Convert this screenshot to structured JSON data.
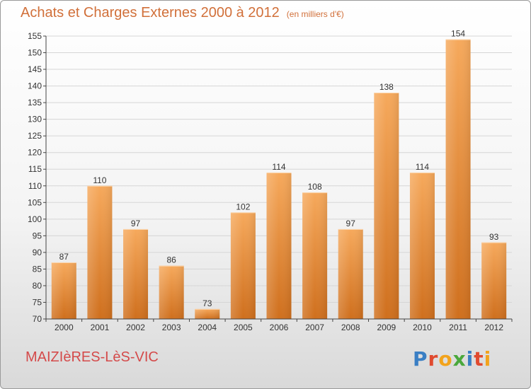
{
  "header": {
    "title": "Achats et Charges Externes 2000 à 2012",
    "unit": "(en milliers d'€)"
  },
  "footer": {
    "commune": "MAIZIèRES-LèS-VIC",
    "logo_text": "Proxiti",
    "logo_colors": [
      "#3a7fc4",
      "#e04a2f",
      "#f2a31c",
      "#4aa83c",
      "#3a7fc4",
      "#e04a2f",
      "#f2a31c"
    ]
  },
  "colors": {
    "bar_top": "#f6a95c",
    "bar_bottom": "#cf6f1d",
    "grid": "#d6d6d6",
    "axis": "#444444",
    "text": "#333333"
  },
  "chart_data": {
    "type": "bar",
    "categories": [
      "2000",
      "2001",
      "2002",
      "2003",
      "2004",
      "2005",
      "2006",
      "2007",
      "2008",
      "2009",
      "2010",
      "2011",
      "2012"
    ],
    "values": [
      87,
      110,
      97,
      86,
      73,
      102,
      114,
      108,
      97,
      138,
      114,
      154,
      93
    ],
    "ylim": [
      70,
      155
    ],
    "yticks": [
      70,
      75,
      80,
      85,
      90,
      95,
      100,
      105,
      110,
      115,
      120,
      125,
      130,
      135,
      140,
      145,
      150,
      155
    ],
    "grid": true
  }
}
